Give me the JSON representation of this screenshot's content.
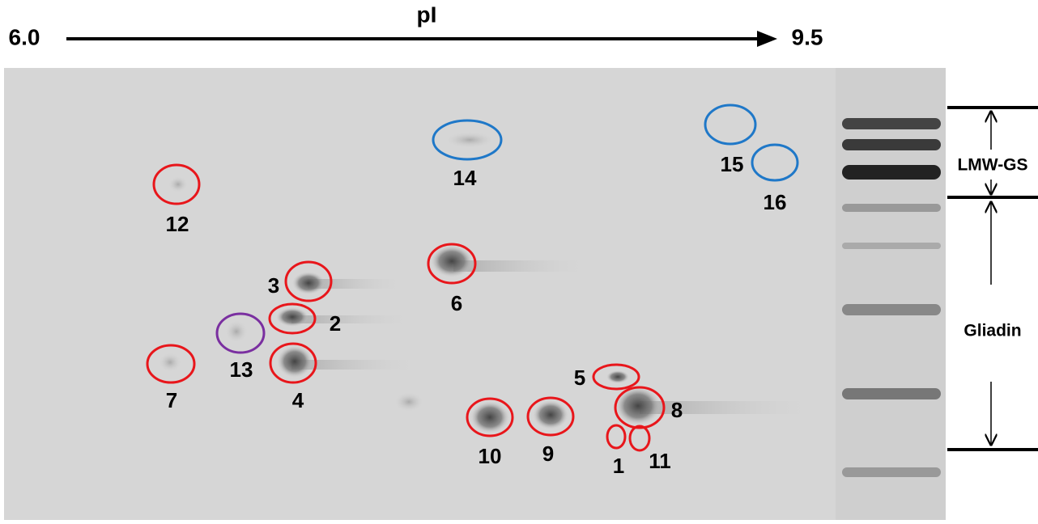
{
  "axis": {
    "label": "pI",
    "start": "6.0",
    "end": "9.5"
  },
  "spots": [
    {
      "label": "14"
    },
    {
      "label": "15"
    },
    {
      "label": "16"
    },
    {
      "label": "12"
    },
    {
      "label": "6"
    },
    {
      "label": "3"
    },
    {
      "label": "2"
    },
    {
      "label": "13"
    },
    {
      "label": "7"
    },
    {
      "label": "4"
    },
    {
      "label": "5"
    },
    {
      "label": "8"
    },
    {
      "label": "10"
    },
    {
      "label": "9"
    },
    {
      "label": "1"
    },
    {
      "label": "11"
    }
  ],
  "regions": [
    {
      "label": "LMW-GS"
    },
    {
      "label": "Gliadin"
    }
  ]
}
